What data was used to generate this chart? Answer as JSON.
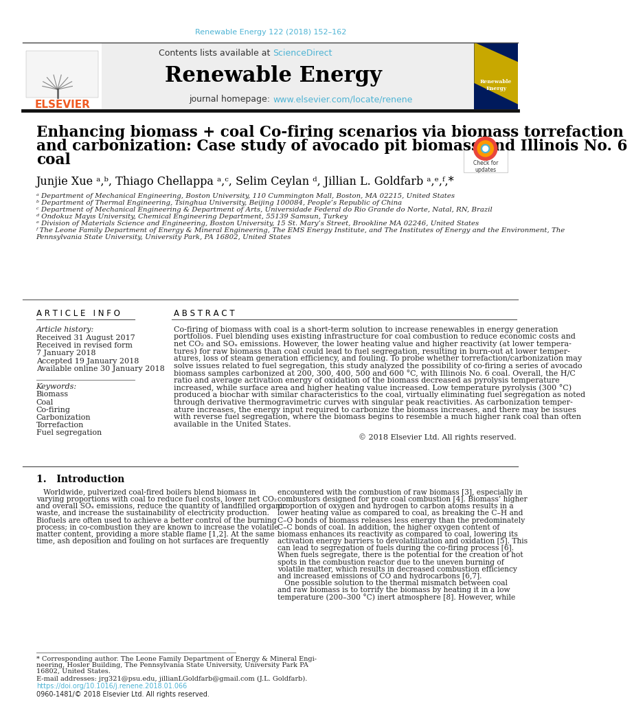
{
  "journal_ref": "Renewable Energy 122 (2018) 152–162",
  "journal_ref_color": "#4db3d4",
  "contents_text": "Contents lists available at ",
  "sciencedirect_text": "ScienceDirect",
  "journal_name": "Renewable Energy",
  "journal_homepage_prefix": "journal homepage: ",
  "journal_homepage_url": "www.elsevier.com/locate/renene",
  "title_line1": "Enhancing biomass + coal Co-firing scenarios via biomass torrefaction",
  "title_line2": "and carbonization: Case study of avocado pit biomass and Illinois No. 6",
  "title_line3": "coal",
  "authors_display": "Junjie Xue ᵃ,ᵇ, Thiago Chellappa ᵃ,ᶜ, Selim Ceylan ᵈ, Jillian L. Goldfarb ᵃ,ᵉ,ᶠ,*",
  "affil_a": "ᵃ Department of Mechanical Engineering, Boston University, 110 Cummington Mall, Boston, MA 02215, United States",
  "affil_b": "ᵇ Department of Thermal Engineering, Tsinghua University, Beijing 100084, People’s Republic of China",
  "affil_c": "ᶜ Department of Mechanical Engineering & Department of Arts, Universidade Federal do Rio Grande do Norte, Natal, RN, Brazil",
  "affil_d": "ᵈ Ondokuz Mayıs University, Chemical Engineering Department, 55139 Samsun, Turkey",
  "affil_e": "ᵉ Division of Materials Science and Engineering, Boston University, 15 St. Mary’s Street, Brookline MA 02246, United States",
  "affil_f1": "ᶠ The Leone Family Department of Energy & Mineral Engineering, The EMS Energy Institute, and The Institutes of Energy and the Environment, The",
  "affil_f2": "Pennsylvania State University, University Park, PA 16802, United States",
  "article_info_header": "A R T I C L E   I N F O",
  "abstract_header": "A B S T R A C T",
  "article_history_label": "Article history:",
  "history_items": [
    "Received 31 August 2017",
    "Received in revised form",
    "7 January 2018",
    "Accepted 19 January 2018",
    "Available online 30 January 2018"
  ],
  "keywords_label": "Keywords:",
  "keywords": [
    "Biomass",
    "Coal",
    "Co-firing",
    "Carbonization",
    "Torrefaction",
    "Fuel segregation"
  ],
  "abstract_lines": [
    "Co-firing of biomass with coal is a short-term solution to increase renewables in energy generation",
    "portfolios. Fuel blending uses existing infrastructure for coal combustion to reduce economic costs and",
    "net CO₂ and SOₓ emissions. However, the lower heating value and higher reactivity (at lower tempera-",
    "tures) for raw biomass than coal could lead to fuel segregation, resulting in burn-out at lower temper-",
    "atures, loss of steam generation efficiency, and fouling. To probe whether torrefaction/carbonization may",
    "solve issues related to fuel segregation, this study analyzed the possibility of co-firing a series of avocado",
    "biomass samples carbonized at 200, 300, 400, 500 and 600 °C, with Illinois No. 6 coal. Overall, the H/C",
    "ratio and average activation energy of oxidation of the biomass decreased as pyrolysis temperature",
    "increased, while surface area and higher heating value increased. Low temperature pyrolysis (300 °C)",
    "produced a biochar with similar characteristics to the coal, virtually eliminating fuel segregation as noted",
    "through derivative thermogravimetric curves with singular peak reactivities. As carbonization temper-",
    "ature increases, the energy input required to carbonize the biomass increases, and there may be issues",
    "with reverse fuel segregation, where the biomass begins to resemble a much higher rank coal than often",
    "available in the United States."
  ],
  "copyright": "© 2018 Elsevier Ltd. All rights reserved.",
  "intro_header": "1.   Introduction",
  "intro_left_lines": [
    "   Worldwide, pulverized coal-fired boilers blend biomass in",
    "varying proportions with coal to reduce fuel costs, lower net CO₂",
    "and overall SOₓ emissions, reduce the quantity of landfilled organic",
    "waste, and increase the sustainability of electricity production.",
    "Biofuels are often used to achieve a better control of the burning",
    "process; in co-combustion they are known to increase the volatile",
    "matter content, providing a more stable flame [1,2]. At the same",
    "time, ash deposition and fouling on hot surfaces are frequently"
  ],
  "intro_right_lines": [
    "encountered with the combustion of raw biomass [3], especially in",
    "combustors designed for pure coal combustion [4]. Biomass’ higher",
    "proportion of oxygen and hydrogen to carbon atoms results in a",
    "lower heating value as compared to coal, as breaking the C–H and",
    "C–O bonds of biomass releases less energy than the predominately",
    "C–C bonds of coal. In addition, the higher oxygen content of",
    "biomass enhances its reactivity as compared to coal, lowering its",
    "activation energy barriers to devolatilization and oxidation [5]. This",
    "can lead to segregation of fuels during the co-firing process [6].",
    "When fuels segregate, there is the potential for the creation of hot",
    "spots in the combustion reactor due to the uneven burning of",
    "volatile matter, which results in decreased combustion efficiency",
    "and increased emissions of CO and hydrocarbons [6,7].",
    "   One possible solution to the thermal mismatch between coal",
    "and raw biomass is to torrify the biomass by heating it in a low",
    "temperature (200–300 °C) inert atmosphere [8]. However, while"
  ],
  "footnote_lines": [
    "* Corresponding author. The Leone Family Department of Energy & Mineral Engi-",
    "neering, Hosler Building, The Pennsylvania State University, University Park PA",
    "16802, United States."
  ],
  "footnote_email": "E-mail addresses: jrg321@psu.edu, jillianLGoldfarb@gmail.com (J.L. Goldfarb).",
  "doi_text": "https://doi.org/10.1016/j.renene.2018.01.066",
  "issn_text": "0960-1481/© 2018 Elsevier Ltd. All rights reserved.",
  "bg_color": "#ffffff",
  "black": "#000000",
  "dark_gray": "#222222",
  "elsevier_orange": "#f05a22"
}
